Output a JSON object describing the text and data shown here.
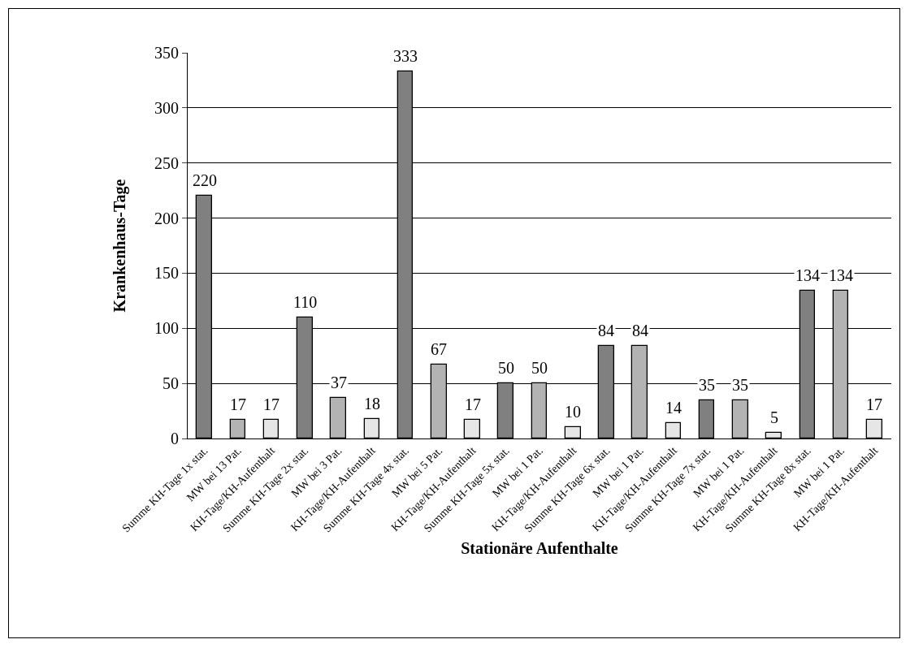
{
  "chart_data": {
    "type": "bar",
    "xlabel": "Stationäre Aufenthalte",
    "ylabel": "Krankenhaus-Tage",
    "categories": [
      "Summe KH-Tage 1x stat.",
      "MW bei 13 Pat.",
      "KH-Tage/KH-Aufenthalt",
      "Summe KH-Tage 2x stat.",
      "MW bei 3 Pat.",
      "KH-Tage/KH-Aufenthalt",
      "Summe KH-Tage 4x stat.",
      "MW bei 5 Pat.",
      "KH-Tage/KH-Aufenthalt",
      "Summe KH-Tage 5x stat.",
      "MW bei 1 Pat.",
      "KH-Tage/KH-Aufenthalt",
      "Summe KH-Tage 6x stat.",
      "MW bei 1 Pat.",
      "KH-Tage/KH-Aufenthalt",
      "Summe KH-Tage 7x stat.",
      "MW bei 1 Pat.",
      "KH-Tage/KH-Aufenthalt",
      "Summe KH-Tage 8x stat.",
      "MW bei 1 Pat.",
      "KH-Tage/KH-Aufenthalt"
    ],
    "values": [
      220,
      17,
      17,
      110,
      37,
      18,
      333,
      67,
      17,
      50,
      50,
      10,
      84,
      84,
      14,
      35,
      35,
      5,
      134,
      134,
      17
    ],
    "colors": [
      "#808080",
      "#b3b3b3",
      "#e6e6e6",
      "#808080",
      "#b3b3b3",
      "#e6e6e6",
      "#808080",
      "#b3b3b3",
      "#e6e6e6",
      "#808080",
      "#b3b3b3",
      "#e6e6e6",
      "#808080",
      "#b3b3b3",
      "#e6e6e6",
      "#808080",
      "#b3b3b3",
      "#e6e6e6",
      "#808080",
      "#b3b3b3",
      "#e6e6e6"
    ],
    "ylim": [
      0,
      350
    ],
    "yticks": [
      0,
      50,
      100,
      150,
      200,
      250,
      300,
      350
    ],
    "grid": "y",
    "data_labels": true
  }
}
